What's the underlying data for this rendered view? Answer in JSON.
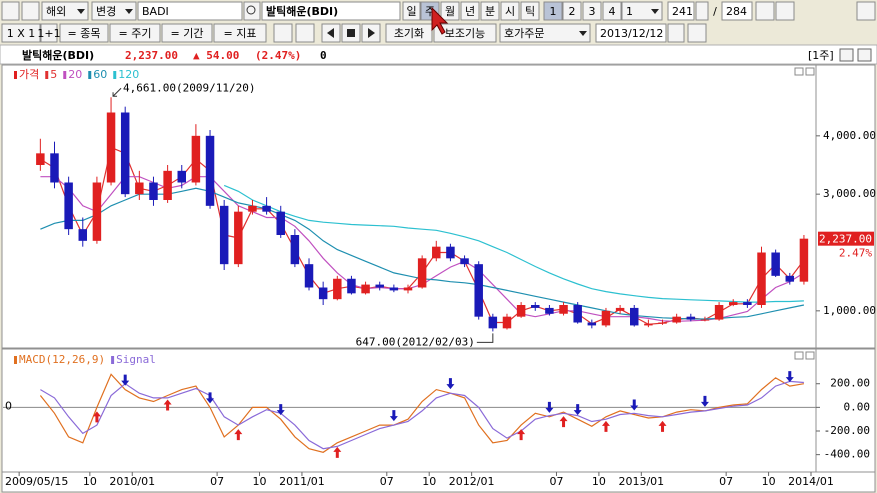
{
  "toolbar": {
    "row1": [
      "해외",
      "변경",
      "BADI",
      "발틱해운(BDI)",
      "일",
      "주",
      "월",
      "년",
      "분",
      "시",
      "틱",
      "1",
      "2",
      "3",
      "4",
      "1",
      "241",
      "/",
      "284"
    ],
    "row2": [
      "1 X 1",
      "1+1",
      "= 종목",
      "= 주기",
      "= 기간",
      "= 지표",
      "초기화",
      "보조기능",
      "호가주문",
      "2013/12/12"
    ]
  },
  "header": {
    "name": "발틱해운(BDI)",
    "price": "2,237.00",
    "change": "▲ 54.00",
    "change_pct": "(2.47%)",
    "volume": "0",
    "period": "[1주]"
  },
  "chart_data": [
    {
      "type": "candlestick",
      "name": "가격",
      "up_color": "#e02020",
      "down_color": "#1a1ab8",
      "x": [
        "2009/06",
        "2009/07",
        "2009/08",
        "2009/09",
        "2009/10",
        "2009/11",
        "2009/12",
        "2010/01",
        "2010/02",
        "2010/03",
        "2010/04",
        "2010/05",
        "2010/06",
        "2010/07",
        "2010/08",
        "2010/09",
        "2010/10",
        "2010/11",
        "2010/12",
        "2011/01",
        "2011/02",
        "2011/03",
        "2011/04",
        "2011/05",
        "2011/06",
        "2011/07",
        "2011/08",
        "2011/09",
        "2011/10",
        "2011/11",
        "2011/12",
        "2012/01",
        "2012/02",
        "2012/03",
        "2012/04",
        "2012/05",
        "2012/06",
        "2012/07",
        "2012/08",
        "2012/09",
        "2012/10",
        "2012/11",
        "2012/12",
        "2013/01",
        "2013/02",
        "2013/03",
        "2013/04",
        "2013/05",
        "2013/06",
        "2013/07",
        "2013/08",
        "2013/09",
        "2013/10",
        "2013/11",
        "2013/12"
      ],
      "open": [
        3500,
        3700,
        3200,
        2400,
        2200,
        3200,
        4400,
        3000,
        3200,
        2900,
        3400,
        3200,
        4000,
        2800,
        1800,
        2700,
        2800,
        2700,
        2300,
        1800,
        1400,
        1200,
        1550,
        1300,
        1450,
        1400,
        1350,
        1400,
        1900,
        2100,
        1900,
        1800,
        900,
        700,
        900,
        1100,
        1050,
        950,
        1100,
        800,
        750,
        1000,
        1050,
        750,
        780,
        800,
        900,
        850,
        850,
        1100,
        1150,
        1100,
        2000,
        1600,
        1500
      ],
      "high": [
        3950,
        3900,
        3300,
        2600,
        3300,
        4661,
        4500,
        3400,
        3300,
        3500,
        3500,
        4200,
        4100,
        2900,
        2800,
        2900,
        2950,
        2800,
        2400,
        1900,
        1500,
        1600,
        1600,
        1500,
        1500,
        1450,
        1450,
        1950,
        2200,
        2150,
        1950,
        1850,
        950,
        950,
        1150,
        1150,
        1100,
        1150,
        1150,
        850,
        1050,
        1100,
        1100,
        850,
        850,
        950,
        950,
        900,
        1150,
        1200,
        1200,
        2100,
        2050,
        1650,
        2300
      ],
      "low": [
        3400,
        3100,
        2300,
        2100,
        2150,
        3150,
        2950,
        2900,
        2800,
        2850,
        3100,
        3150,
        2750,
        1700,
        1750,
        2650,
        2650,
        2250,
        1750,
        1350,
        1100,
        1180,
        1280,
        1280,
        1350,
        1320,
        1300,
        1380,
        1850,
        1850,
        1750,
        850,
        647,
        680,
        880,
        1000,
        920,
        920,
        780,
        700,
        720,
        950,
        730,
        720,
        760,
        780,
        820,
        820,
        830,
        1080,
        1050,
        1050,
        1580,
        1450,
        1450
      ],
      "close": [
        3700,
        3200,
        2400,
        2200,
        3200,
        4400,
        3000,
        3200,
        2900,
        3400,
        3200,
        4000,
        2800,
        1800,
        2700,
        2800,
        2700,
        2300,
        1800,
        1400,
        1200,
        1550,
        1300,
        1450,
        1400,
        1350,
        1400,
        1900,
        2100,
        1900,
        1800,
        900,
        700,
        900,
        1100,
        1050,
        950,
        1100,
        800,
        750,
        1000,
        1050,
        750,
        780,
        800,
        900,
        850,
        850,
        1100,
        1150,
        1100,
        2000,
        1600,
        1500,
        2237
      ],
      "series": [
        {
          "name": "5",
          "color": "#e03030",
          "values": [
            3600,
            3450,
            2800,
            2300,
            2700,
            3800,
            3700,
            3100,
            3050,
            3150,
            3300,
            3600,
            3400,
            2300,
            2250,
            2750,
            2750,
            2500,
            2050,
            1600,
            1300,
            1380,
            1420,
            1380,
            1420,
            1380,
            1380,
            1650,
            2000,
            2000,
            1850,
            1350,
            800,
            800,
            1000,
            1080,
            1000,
            1030,
            950,
            780,
            880,
            1030,
            900,
            770,
            790,
            850,
            880,
            850,
            980,
            1120,
            1120,
            1550,
            1800,
            1550,
            1870
          ]
        },
        {
          "name": "20",
          "color": "#c050c0",
          "values": [
            3300,
            3300,
            3100,
            2800,
            2700,
            3000,
            3300,
            3300,
            3200,
            3100,
            3150,
            3300,
            3300,
            3050,
            2800,
            2700,
            2600,
            2600,
            2450,
            2200,
            1900,
            1650,
            1450,
            1380,
            1400,
            1380,
            1380,
            1450,
            1600,
            1750,
            1850,
            1700,
            1450,
            1200,
            950,
            900,
            950,
            1000,
            1000,
            950,
            900,
            900,
            900,
            870,
            830,
            820,
            830,
            840,
            870,
            930,
            990,
            1200,
            1400,
            1500,
            1650
          ]
        },
        {
          "name": "60",
          "color": "#1e8fb0",
          "values": [
            2400,
            2500,
            2550,
            2550,
            2650,
            2800,
            2900,
            3000,
            3000,
            3000,
            3050,
            3100,
            3050,
            2950,
            2850,
            2800,
            2750,
            2650,
            2550,
            2400,
            2200,
            2050,
            1950,
            1850,
            1750,
            1650,
            1600,
            1550,
            1530,
            1500,
            1480,
            1450,
            1400,
            1350,
            1300,
            1250,
            1200,
            1150,
            1100,
            1050,
            1000,
            950,
            920,
            900,
            880,
            870,
            860,
            860,
            870,
            890,
            900,
            950,
            1000,
            1050,
            1100
          ]
        },
        {
          "name": "120",
          "color": "#2cc0d0",
          "values": [
            null,
            null,
            null,
            null,
            null,
            null,
            null,
            null,
            null,
            null,
            null,
            null,
            null,
            3150,
            3050,
            2900,
            2800,
            2700,
            2620,
            2550,
            2520,
            2500,
            2480,
            2470,
            2460,
            2450,
            2420,
            2400,
            2380,
            2330,
            2270,
            2200,
            2100,
            2000,
            1880,
            1760,
            1650,
            1550,
            1460,
            1380,
            1330,
            1290,
            1260,
            1230,
            1210,
            1200,
            1190,
            1180,
            1170,
            1160,
            1150,
            1150,
            1160,
            1160,
            1170
          ]
        }
      ],
      "ylim": [
        380,
        5180
      ],
      "yticks": [
        {
          "value": 1000,
          "label": "1,000.00"
        },
        {
          "value": 3000,
          "label": "3,000.00"
        },
        {
          "value": 4000,
          "label": "4,000.00"
        }
      ],
      "xlim": [
        "2009/04",
        "2014/01"
      ],
      "xticks": [
        {
          "value": "2009/05",
          "label": "2009/05/15"
        },
        {
          "value": "2009/10",
          "label": "10"
        },
        {
          "value": "2010/01",
          "label": "2010/01"
        },
        {
          "value": "2010/07",
          "label": "07"
        },
        {
          "value": "2010/10",
          "label": "10"
        },
        {
          "value": "2011/01",
          "label": "2011/01"
        },
        {
          "value": "2011/07",
          "label": "07"
        },
        {
          "value": "2011/10",
          "label": "10"
        },
        {
          "value": "2012/01",
          "label": "2012/01"
        },
        {
          "value": "2012/07",
          "label": "07"
        },
        {
          "value": "2012/10",
          "label": "10"
        },
        {
          "value": "2013/01",
          "label": "2013/01"
        },
        {
          "value": "2013/07",
          "label": "07"
        },
        {
          "value": "2013/10",
          "label": "10"
        },
        {
          "value": "2014/01",
          "label": "2014/01"
        }
      ],
      "annotations": [
        {
          "text": "4,661.00(2009/11/20)",
          "x": "2009/11",
          "y": 4661
        },
        {
          "text": "647.00(2012/02/03)",
          "x": "2012/02",
          "y": 647
        }
      ],
      "last_value_label": "2,237.00",
      "last_change_label": "2.47%"
    },
    {
      "type": "line",
      "x": [
        "2009/06",
        "2009/07",
        "2009/08",
        "2009/09",
        "2009/10",
        "2009/11",
        "2009/12",
        "2010/01",
        "2010/02",
        "2010/03",
        "2010/04",
        "2010/05",
        "2010/06",
        "2010/07",
        "2010/08",
        "2010/09",
        "2010/10",
        "2010/11",
        "2010/12",
        "2011/01",
        "2011/02",
        "2011/03",
        "2011/04",
        "2011/05",
        "2011/06",
        "2011/07",
        "2011/08",
        "2011/09",
        "2011/10",
        "2011/11",
        "2011/12",
        "2012/01",
        "2012/02",
        "2012/03",
        "2012/04",
        "2012/05",
        "2012/06",
        "2012/07",
        "2012/08",
        "2012/09",
        "2012/10",
        "2012/11",
        "2012/12",
        "2013/01",
        "2013/02",
        "2013/03",
        "2013/04",
        "2013/05",
        "2013/06",
        "2013/07",
        "2013/08",
        "2013/09",
        "2013/10",
        "2013/11",
        "2013/12"
      ],
      "series": [
        {
          "name": "MACD(12,26,9)",
          "color": "#e07020",
          "values": [
            100,
            -50,
            -250,
            -300,
            0,
            280,
            150,
            80,
            50,
            100,
            150,
            180,
            0,
            -250,
            -150,
            0,
            0,
            -100,
            -250,
            -350,
            -380,
            -300,
            -250,
            -200,
            -150,
            -150,
            -100,
            50,
            150,
            120,
            80,
            -150,
            -300,
            -280,
            -150,
            -50,
            -80,
            -40,
            -100,
            -160,
            -80,
            -30,
            -60,
            -90,
            -80,
            -40,
            -20,
            -30,
            0,
            20,
            30,
            150,
            250,
            180,
            200
          ]
        },
        {
          "name": "Signal",
          "color": "#8a6ad8",
          "values": [
            150,
            80,
            -80,
            -220,
            -150,
            100,
            200,
            120,
            80,
            80,
            120,
            160,
            100,
            -80,
            -150,
            -80,
            -20,
            -50,
            -150,
            -280,
            -350,
            -330,
            -280,
            -230,
            -180,
            -150,
            -120,
            -30,
            80,
            120,
            100,
            0,
            -180,
            -260,
            -200,
            -100,
            -70,
            -50,
            -70,
            -120,
            -100,
            -60,
            -50,
            -70,
            -80,
            -60,
            -40,
            -30,
            -10,
            10,
            20,
            80,
            180,
            220,
            210
          ]
        }
      ],
      "ylim": [
        -530,
        460
      ],
      "yticks": [
        {
          "value": 200,
          "label": "200.00"
        },
        {
          "value": 0,
          "label": "0.00"
        },
        {
          "value": -200,
          "label": "-200.00"
        },
        {
          "value": -400,
          "label": "-400.00"
        }
      ],
      "zero_label": "0"
    }
  ]
}
